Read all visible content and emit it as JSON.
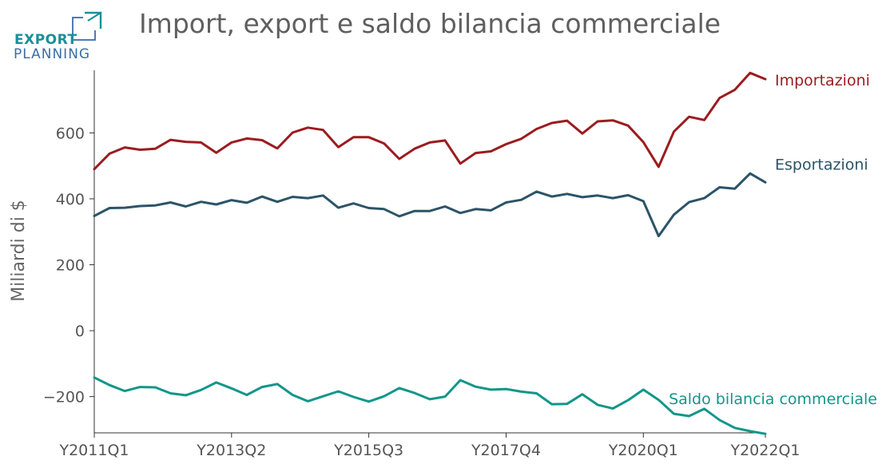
{
  "logo": {
    "line1": "EXPORT",
    "line2": "PLANNING"
  },
  "colors": {
    "importazioni": "#9b1c1f",
    "esportazioni": "#2b5468",
    "saldo": "#12968a",
    "axis": "#333333",
    "title": "#5f5f5f",
    "logo_teal": "#1a8f9a",
    "logo_blue": "#3a6ea8"
  },
  "chart_data": {
    "type": "line",
    "title": "Import, export e saldo bilancia commerciale",
    "xlabel": "",
    "ylabel": "Miliardi di $",
    "ylim": [
      -310,
      790
    ],
    "yticks": [
      -200,
      0,
      200,
      400,
      600
    ],
    "ytick_labels": [
      "−200",
      "0",
      "200",
      "400",
      "600"
    ],
    "xtick_labels": [
      "Y2011Q1",
      "Y2013Q2",
      "Y2015Q3",
      "Y2017Q4",
      "Y2020Q1",
      "Y2022Q1"
    ],
    "xtick_index": [
      0,
      9,
      18,
      27,
      36,
      44
    ],
    "grid": false,
    "legend": "inline labels at line ends",
    "categories": [
      "Y2011Q1",
      "Y2011Q2",
      "Y2011Q3",
      "Y2011Q4",
      "Y2012Q1",
      "Y2012Q2",
      "Y2012Q3",
      "Y2012Q4",
      "Y2013Q1",
      "Y2013Q2",
      "Y2013Q3",
      "Y2013Q4",
      "Y2014Q1",
      "Y2014Q2",
      "Y2014Q3",
      "Y2014Q4",
      "Y2015Q1",
      "Y2015Q2",
      "Y2015Q3",
      "Y2015Q4",
      "Y2016Q1",
      "Y2016Q2",
      "Y2016Q3",
      "Y2016Q4",
      "Y2017Q1",
      "Y2017Q2",
      "Y2017Q3",
      "Y2017Q4",
      "Y2018Q1",
      "Y2018Q2",
      "Y2018Q3",
      "Y2018Q4",
      "Y2019Q1",
      "Y2019Q2",
      "Y2019Q3",
      "Y2019Q4",
      "Y2020Q1",
      "Y2020Q2",
      "Y2020Q3",
      "Y2020Q4",
      "Y2021Q1",
      "Y2021Q2",
      "Y2021Q3",
      "Y2021Q4",
      "Y2022Q1"
    ],
    "series": [
      {
        "name": "Importazioni",
        "key": "importazioni",
        "values": [
          490,
          537,
          556,
          549,
          552,
          579,
          573,
          571,
          540,
          571,
          583,
          578,
          553,
          601,
          616,
          609,
          557,
          587,
          587,
          568,
          521,
          552,
          571,
          577,
          507,
          539,
          544,
          566,
          582,
          612,
          630,
          637,
          598,
          635,
          638,
          622,
          572,
          497,
          604,
          649,
          639,
          706,
          731,
          782,
          763
        ]
      },
      {
        "name": "Esportazioni",
        "key": "esportazioni",
        "values": [
          348,
          372,
          373,
          378,
          380,
          389,
          377,
          391,
          383,
          396,
          388,
          407,
          391,
          406,
          402,
          410,
          373,
          386,
          372,
          369,
          347,
          363,
          363,
          377,
          357,
          369,
          365,
          389,
          397,
          422,
          407,
          415,
          405,
          410,
          402,
          411,
          393,
          287,
          352,
          390,
          402,
          435,
          431,
          477,
          450
        ]
      },
      {
        "name": "Saldo bilancia commerciale",
        "key": "saldo",
        "values": [
          -142,
          -165,
          -183,
          -171,
          -172,
          -190,
          -196,
          -180,
          -157,
          -175,
          -195,
          -171,
          -162,
          -195,
          -214,
          -199,
          -184,
          -201,
          -215,
          -199,
          -174,
          -189,
          -208,
          -200,
          -150,
          -170,
          -179,
          -177,
          -185,
          -190,
          -223,
          -222,
          -193,
          -225,
          -236,
          -211,
          -179,
          -210,
          -252,
          -259,
          -237,
          -271,
          -295,
          -305,
          -313
        ]
      }
    ]
  }
}
